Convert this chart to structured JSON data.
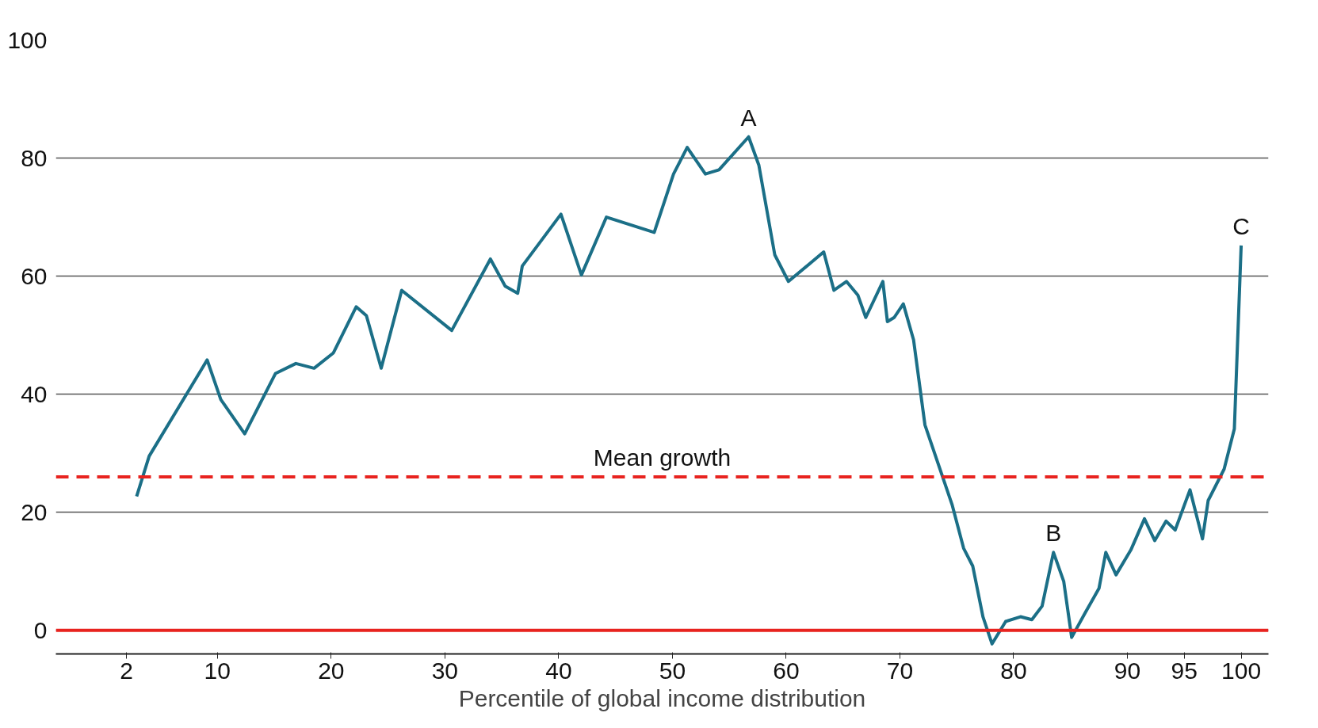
{
  "chart_data": {
    "type": "line",
    "xlabel": "Percentile of global income distribution",
    "x": [
      2.9,
      4.0,
      9.1,
      10.3,
      12.4,
      15.1,
      16.9,
      18.5,
      20.2,
      22.2,
      23.1,
      24.4,
      26.2,
      30.6,
      34.0,
      35.3,
      36.4,
      36.8,
      40.2,
      42.0,
      44.2,
      48.4,
      50.1,
      51.3,
      52.9,
      54.1,
      56.7,
      57.6,
      59.0,
      60.2,
      63.3,
      64.2,
      65.3,
      66.3,
      67.0,
      68.5,
      68.9,
      69.5,
      70.3,
      71.2,
      72.2,
      74.6,
      75.6,
      76.4,
      77.3,
      78.1,
      79.3,
      80.6,
      81.6,
      82.5,
      83.5,
      84.4,
      85.1,
      86.3,
      87.5,
      88.1,
      89.0,
      90.3,
      91.5,
      92.4,
      93.4,
      94.2,
      95.5,
      96.6,
      97.1,
      98.5,
      99.4,
      100
    ],
    "series": [
      {
        "color": "#1b6f87",
        "values": [
          22.7,
          29.5,
          45.8,
          39.1,
          33.3,
          43.5,
          45.2,
          44.4,
          47.0,
          54.8,
          53.3,
          44.4,
          57.6,
          50.8,
          62.9,
          58.3,
          57.1,
          61.7,
          70.5,
          60.2,
          70.0,
          67.4,
          77.3,
          81.8,
          77.3,
          78.0,
          83.6,
          78.8,
          63.6,
          59.1,
          64.1,
          57.6,
          59.1,
          56.8,
          53.0,
          59.1,
          52.3,
          53.0,
          55.3,
          49.2,
          34.8,
          21.2,
          13.9,
          10.9,
          2.3,
          -2.3,
          1.5,
          2.3,
          1.8,
          4.1,
          13.2,
          8.3,
          -1.2,
          3.0,
          7.1,
          13.2,
          9.4,
          13.6,
          18.9,
          15.2,
          18.5,
          17.0,
          23.8,
          15.5,
          22.0,
          27.3,
          34.1,
          65.2
        ]
      }
    ],
    "xlim": [
      -4.2,
      102.4
    ],
    "xticks": [
      2,
      10,
      20,
      30,
      40,
      50,
      60,
      70,
      80,
      90,
      95,
      100
    ],
    "ylim": [
      -4,
      100
    ],
    "yticks": [
      0,
      20,
      40,
      60,
      80,
      100
    ],
    "grid": "y",
    "ref_lines": [
      {
        "axis": "y",
        "value": 0,
        "color": "#e8231f",
        "line_style": "solid"
      },
      {
        "axis": "y",
        "value": 26,
        "label": "Mean growth",
        "color": "#e8231f",
        "line_style": "dashed"
      }
    ],
    "annotations": [
      {
        "text": "A",
        "x": 56.7,
        "y": 83.6
      },
      {
        "text": "B",
        "x": 83.5,
        "y": 13.2
      },
      {
        "text": "C",
        "x": 100,
        "y": 65.2
      }
    ]
  }
}
